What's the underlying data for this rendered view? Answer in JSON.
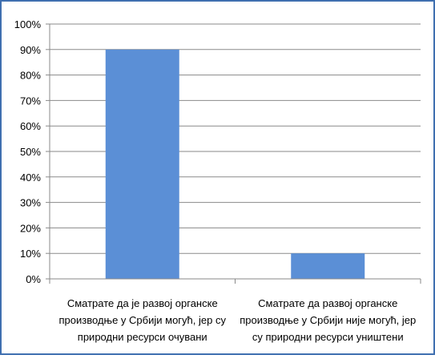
{
  "chart_data": {
    "type": "bar",
    "title": "",
    "xlabel": "",
    "ylabel": "",
    "categories": [
      [
        "Сматрате да је развој органске",
        "производње у Србији могућ, јер су",
        "природни ресурси очувани"
      ],
      [
        "Сматрате да развој органске",
        "производње у Србији није могућ, јер",
        "су природни ресурси уништени"
      ]
    ],
    "values": [
      90,
      10
    ],
    "ylim": [
      0,
      100
    ],
    "yticks": [
      "0%",
      "10%",
      "20%",
      "30%",
      "40%",
      "50%",
      "60%",
      "70%",
      "80%",
      "90%",
      "100%"
    ],
    "grid": true,
    "legend": "none",
    "bar_color": "#5b8fd6",
    "grid_color": "#8a8a8a",
    "border_color": "#3f6fb0"
  }
}
